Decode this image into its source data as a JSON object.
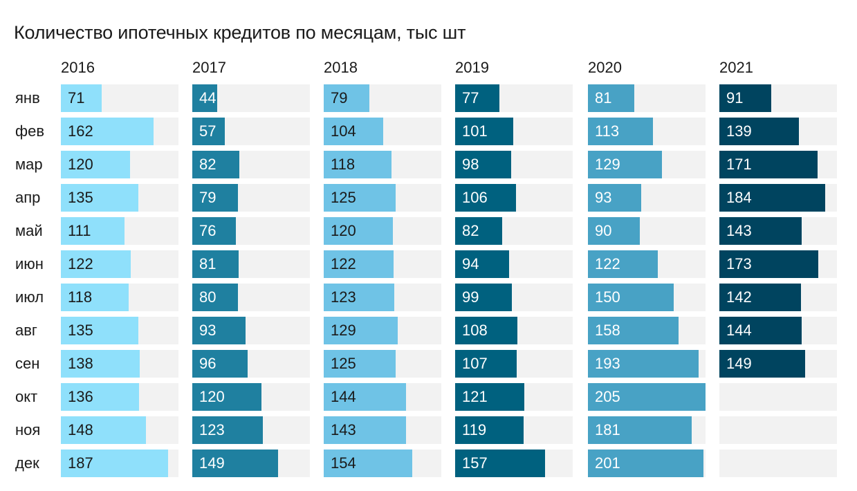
{
  "chart_data": {
    "type": "bar",
    "title": "Количество ипотечных кредитов по месяцам, тыс шт",
    "categories": [
      "янв",
      "фев",
      "мар",
      "апр",
      "май",
      "июн",
      "июл",
      "авг",
      "сен",
      "окт",
      "ноя",
      "дек"
    ],
    "max_value": 205,
    "series": [
      {
        "name": "2016",
        "color": "#8fe0fb",
        "text_color": "#1a1a1a",
        "values": [
          71,
          162,
          120,
          135,
          111,
          122,
          118,
          135,
          138,
          136,
          148,
          187
        ]
      },
      {
        "name": "2017",
        "color": "#1f80a0",
        "text_color": "#ffffff",
        "values": [
          44,
          57,
          82,
          79,
          76,
          81,
          80,
          93,
          96,
          120,
          123,
          149
        ]
      },
      {
        "name": "2018",
        "color": "#6fc3e6",
        "text_color": "#1a1a1a",
        "values": [
          79,
          104,
          118,
          125,
          120,
          122,
          123,
          129,
          125,
          144,
          143,
          154
        ]
      },
      {
        "name": "2019",
        "color": "#00617f",
        "text_color": "#ffffff",
        "values": [
          77,
          101,
          98,
          106,
          82,
          94,
          99,
          108,
          107,
          121,
          119,
          157
        ]
      },
      {
        "name": "2020",
        "color": "#48a2c5",
        "text_color": "#ffffff",
        "values": [
          81,
          113,
          129,
          93,
          90,
          122,
          150,
          158,
          193,
          205,
          181,
          201
        ]
      },
      {
        "name": "2021",
        "color": "#00445f",
        "text_color": "#ffffff",
        "values": [
          91,
          139,
          171,
          184,
          143,
          173,
          142,
          144,
          149,
          null,
          null,
          null
        ]
      }
    ]
  }
}
